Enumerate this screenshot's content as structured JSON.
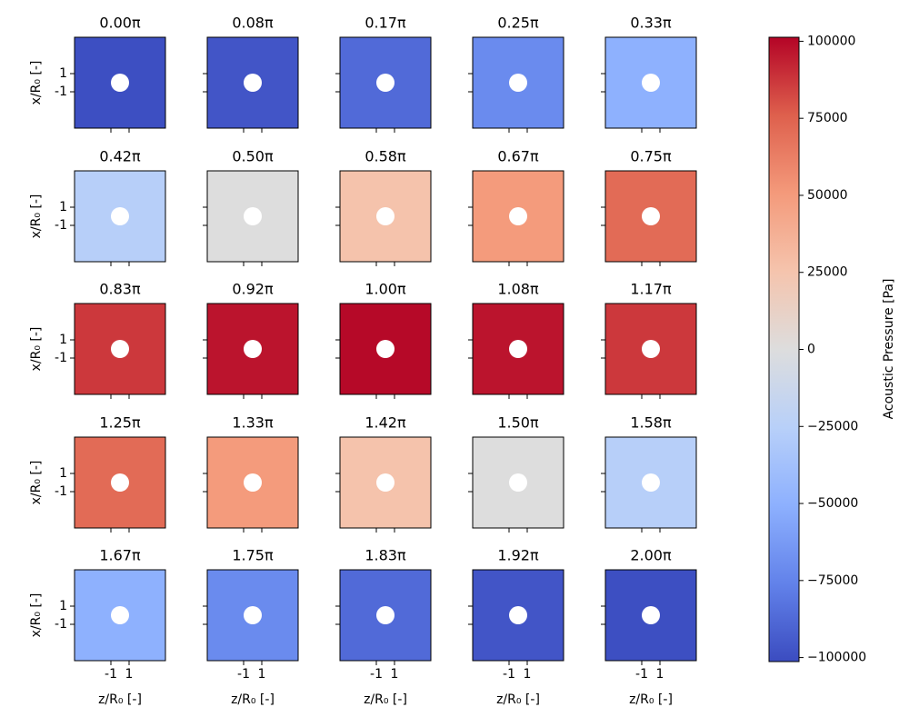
{
  "chart_data": {
    "type": "heatmap-grid",
    "titles": [
      "0.00π",
      "0.08π",
      "0.17π",
      "0.25π",
      "0.33π",
      "0.42π",
      "0.50π",
      "0.58π",
      "0.67π",
      "0.75π",
      "0.83π",
      "0.92π",
      "1.00π",
      "1.08π",
      "1.17π",
      "1.25π",
      "1.33π",
      "1.42π",
      "1.50π",
      "1.58π",
      "1.67π",
      "1.75π",
      "1.83π",
      "1.92π",
      "2.00π"
    ],
    "values": [
      -100000,
      -97000,
      -87000,
      -71000,
      -50000,
      -26000,
      0,
      26000,
      50000,
      71000,
      87000,
      97000,
      100000,
      97000,
      87000,
      71000,
      50000,
      26000,
      0,
      -26000,
      -50000,
      -71000,
      -87000,
      -97000,
      -100000
    ],
    "xlabel": "z/R₀ [-]",
    "ylabel": "x/R₀ [-]",
    "xlim": [
      -5,
      5
    ],
    "ylim": [
      -5,
      5
    ],
    "xticks": [
      -1,
      1
    ],
    "yticks": [
      -1,
      1
    ],
    "colormap": "coolwarm",
    "colorbar": {
      "label": "Acoustic Pressure [Pa]",
      "lim": [
        -101300,
        101300
      ],
      "ticks": [
        {
          "value": -100000,
          "label": "−100000"
        },
        {
          "value": -75000,
          "label": "−75000"
        },
        {
          "value": -50000,
          "label": "−50000"
        },
        {
          "value": -25000,
          "label": "−25000"
        },
        0,
        25000,
        50000,
        75000,
        100000
      ]
    }
  }
}
